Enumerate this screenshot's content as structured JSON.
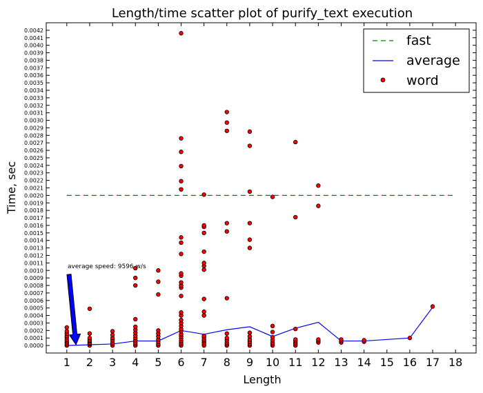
{
  "chart_data": {
    "type": "scatter",
    "title": "Length/time scatter plot of purify_text execution",
    "xlabel": "Length",
    "ylabel": "Time, sec",
    "xlim": [
      0.1,
      18.9
    ],
    "ylim": [
      -0.0001,
      0.0043
    ],
    "x_ticks": [
      1,
      2,
      3,
      4,
      5,
      6,
      7,
      8,
      9,
      10,
      11,
      12,
      13,
      14,
      15,
      16,
      17,
      18
    ],
    "y_ticks": [
      "0.0000",
      "0.0001",
      "0.0002",
      "0.0003",
      "0.0004",
      "0.0005",
      "0.0006",
      "0.0007",
      "0.0008",
      "0.0009",
      "0.0010",
      "0.0011",
      "0.0012",
      "0.0013",
      "0.0014",
      "0.0015",
      "0.0016",
      "0.0017",
      "0.0018",
      "0.0019",
      "0.0020",
      "0.0021",
      "0.0022",
      "0.0023",
      "0.0024",
      "0.0025",
      "0.0026",
      "0.0027",
      "0.0028",
      "0.0029",
      "0.0030",
      "0.0031",
      "0.0032",
      "0.0033",
      "0.0034",
      "0.0035",
      "0.0036",
      "0.0037",
      "0.0038",
      "0.0039",
      "0.0040",
      "0.0041",
      "0.0042"
    ],
    "legend_position": "top-right",
    "series": [
      {
        "name": "fast",
        "type": "line",
        "style": "dashed",
        "color": "#008000",
        "x": [
          1,
          18
        ],
        "y": [
          0.002,
          0.002
        ]
      },
      {
        "name": "average",
        "type": "line",
        "style": "solid",
        "color": "#0000ff",
        "x": [
          1,
          2,
          3,
          4,
          5,
          6,
          7,
          8,
          9,
          10,
          11,
          12,
          13,
          14,
          16,
          17
        ],
        "y": [
          0.0,
          1e-05,
          2e-05,
          6e-05,
          6e-05,
          0.0002,
          0.00015,
          0.00021,
          0.00025,
          0.00012,
          0.00023,
          0.00031,
          6e-05,
          6e-05,
          0.0001,
          0.00051
        ]
      },
      {
        "name": "word",
        "type": "scatter",
        "color": "#ff0000",
        "edge_color": "#000000",
        "points": [
          [
            1,
            0.0
          ],
          [
            1,
            2e-05
          ],
          [
            1,
            4e-05
          ],
          [
            1,
            6e-05
          ],
          [
            1,
            8e-05
          ],
          [
            1,
            0.00011
          ],
          [
            1,
            0.00013
          ],
          [
            1,
            0.00016
          ],
          [
            1,
            0.00019
          ],
          [
            1,
            0.00024
          ],
          [
            2,
            0.0
          ],
          [
            2,
            2e-05
          ],
          [
            2,
            3e-05
          ],
          [
            2,
            4e-05
          ],
          [
            2,
            6e-05
          ],
          [
            2,
            7e-05
          ],
          [
            2,
            0.0001
          ],
          [
            2,
            0.00016
          ],
          [
            2,
            0.00049
          ],
          [
            3,
            0.0
          ],
          [
            3,
            2e-05
          ],
          [
            3,
            4e-05
          ],
          [
            3,
            7e-05
          ],
          [
            3,
            0.0001
          ],
          [
            3,
            0.00014
          ],
          [
            3,
            0.00019
          ],
          [
            4,
            0.0
          ],
          [
            4,
            2e-05
          ],
          [
            4,
            4e-05
          ],
          [
            4,
            7e-05
          ],
          [
            4,
            0.0001
          ],
          [
            4,
            0.00013
          ],
          [
            4,
            0.00017
          ],
          [
            4,
            0.00021
          ],
          [
            4,
            0.00025
          ],
          [
            4,
            0.00035
          ],
          [
            4,
            0.0008
          ],
          [
            4,
            0.0009
          ],
          [
            4,
            0.00103
          ],
          [
            5,
            0.0
          ],
          [
            5,
            2e-05
          ],
          [
            5,
            5e-05
          ],
          [
            5,
            8e-05
          ],
          [
            5,
            0.00012
          ],
          [
            5,
            0.00016
          ],
          [
            5,
            0.0002
          ],
          [
            5,
            0.00068
          ],
          [
            5,
            0.00085
          ],
          [
            5,
            0.001
          ],
          [
            6,
            0.0
          ],
          [
            6,
            2e-05
          ],
          [
            6,
            4e-05
          ],
          [
            6,
            6e-05
          ],
          [
            6,
            9e-05
          ],
          [
            6,
            0.00012
          ],
          [
            6,
            0.00015
          ],
          [
            6,
            0.00019
          ],
          [
            6,
            0.00022
          ],
          [
            6,
            0.00026
          ],
          [
            6,
            0.0003
          ],
          [
            6,
            0.00034
          ],
          [
            6,
            0.0004
          ],
          [
            6,
            0.00044
          ],
          [
            6,
            0.00066
          ],
          [
            6,
            0.00077
          ],
          [
            6,
            0.0008
          ],
          [
            6,
            0.00084
          ],
          [
            6,
            0.00093
          ],
          [
            6,
            0.00096
          ],
          [
            6,
            0.00122
          ],
          [
            6,
            0.00137
          ],
          [
            6,
            0.00144
          ],
          [
            6,
            0.00208
          ],
          [
            6,
            0.00219
          ],
          [
            6,
            0.00239
          ],
          [
            6,
            0.00258
          ],
          [
            6,
            0.00276
          ],
          [
            6,
            0.00416
          ],
          [
            7,
            0.0
          ],
          [
            7,
            2e-05
          ],
          [
            7,
            4e-05
          ],
          [
            7,
            6e-05
          ],
          [
            7,
            8e-05
          ],
          [
            7,
            0.00011
          ],
          [
            7,
            0.00013
          ],
          [
            7,
            0.0004
          ],
          [
            7,
            0.00045
          ],
          [
            7,
            0.00062
          ],
          [
            7,
            0.00101
          ],
          [
            7,
            0.00106
          ],
          [
            7,
            0.0011
          ],
          [
            7,
            0.00125
          ],
          [
            7,
            0.0015
          ],
          [
            7,
            0.00158
          ],
          [
            7,
            0.0016
          ],
          [
            7,
            0.00201
          ],
          [
            8,
            0.0
          ],
          [
            8,
            2e-05
          ],
          [
            8,
            4e-05
          ],
          [
            8,
            7e-05
          ],
          [
            8,
            0.0001
          ],
          [
            8,
            0.00016
          ],
          [
            8,
            0.00063
          ],
          [
            8,
            0.00152
          ],
          [
            8,
            0.00163
          ],
          [
            8,
            0.00286
          ],
          [
            8,
            0.00297
          ],
          [
            8,
            0.00311
          ],
          [
            9,
            0.0
          ],
          [
            9,
            2e-05
          ],
          [
            9,
            5e-05
          ],
          [
            9,
            8e-05
          ],
          [
            9,
            0.00012
          ],
          [
            9,
            0.00017
          ],
          [
            9,
            0.0013
          ],
          [
            9,
            0.00141
          ],
          [
            9,
            0.00163
          ],
          [
            9,
            0.00205
          ],
          [
            9,
            0.00266
          ],
          [
            9,
            0.00285
          ],
          [
            10,
            0.0
          ],
          [
            10,
            2e-05
          ],
          [
            10,
            4e-05
          ],
          [
            10,
            7e-05
          ],
          [
            10,
            0.00011
          ],
          [
            10,
            0.00018
          ],
          [
            10,
            0.00026
          ],
          [
            10,
            0.00198
          ],
          [
            11,
            0.0
          ],
          [
            11,
            2e-05
          ],
          [
            11,
            4e-05
          ],
          [
            11,
            6e-05
          ],
          [
            11,
            8e-05
          ],
          [
            11,
            0.00022
          ],
          [
            11,
            0.00171
          ],
          [
            11,
            0.00271
          ],
          [
            12,
            4e-05
          ],
          [
            12,
            6e-05
          ],
          [
            12,
            8e-05
          ],
          [
            12,
            0.00186
          ],
          [
            12,
            0.00213
          ],
          [
            13,
            4e-05
          ],
          [
            13,
            6e-05
          ],
          [
            13,
            8e-05
          ],
          [
            14,
            5e-05
          ],
          [
            14,
            7e-05
          ],
          [
            16,
            0.0001
          ],
          [
            17,
            0.00052
          ]
        ]
      }
    ],
    "annotation": {
      "text": "average speed: 9596 w/s",
      "arrow_to": [
        1.4,
        1e-05
      ],
      "arrow_color": "#0000ff"
    }
  }
}
